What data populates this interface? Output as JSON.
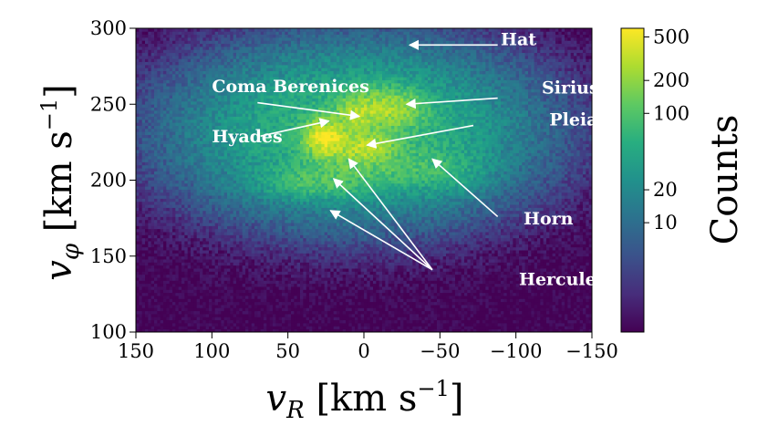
{
  "chart_data": {
    "type": "heatmap",
    "title": "",
    "xlabel": {
      "var": "v",
      "sub": "R",
      "unit": "[km s",
      "exp": "−1",
      "close": "]"
    },
    "ylabel": {
      "var": "v",
      "sub": "φ",
      "unit": "[km s",
      "exp": "−1",
      "close": "]"
    },
    "xlim": [
      150,
      -150
    ],
    "ylim": [
      100,
      300
    ],
    "x_ticks": [
      {
        "value": 150,
        "label": "150"
      },
      {
        "value": 100,
        "label": "100"
      },
      {
        "value": 50,
        "label": "50"
      },
      {
        "value": 0,
        "label": "0"
      },
      {
        "value": -50,
        "label": "−50"
      },
      {
        "value": -100,
        "label": "−100"
      },
      {
        "value": -150,
        "label": "−150"
      }
    ],
    "y_ticks": [
      {
        "value": 100,
        "label": "100"
      },
      {
        "value": 150,
        "label": "150"
      },
      {
        "value": 200,
        "label": "200"
      },
      {
        "value": 250,
        "label": "250"
      },
      {
        "value": 300,
        "label": "300"
      }
    ],
    "colorbar": {
      "label": "Counts",
      "scale": "log",
      "range": [
        1,
        600
      ],
      "colormap": "viridis",
      "ticks": [
        {
          "value": 10,
          "label": "10"
        },
        {
          "value": 20,
          "label": "20"
        },
        {
          "value": 100,
          "label": "100"
        },
        {
          "value": 200,
          "label": "200"
        },
        {
          "value": 500,
          "label": "500"
        }
      ]
    },
    "density_components": [
      {
        "vR": 5,
        "vphi": 232,
        "sR": 60,
        "sphi": 30,
        "amp": 75
      },
      {
        "vR": 25,
        "vphi": 228,
        "sR": 8,
        "sphi": 7,
        "amp": 480
      },
      {
        "vR": -12,
        "vphi": 247,
        "sR": 16,
        "sphi": 8,
        "amp": 220
      },
      {
        "vR": 5,
        "vphi": 243,
        "sR": 6,
        "sphi": 5,
        "amp": 160
      },
      {
        "vR": 0,
        "vphi": 222,
        "sR": 12,
        "sphi": 6,
        "amp": 260
      },
      {
        "vR": 30,
        "vphi": 198,
        "sR": 22,
        "sphi": 6,
        "amp": 60
      },
      {
        "vR": 5,
        "vphi": 208,
        "sR": 25,
        "sphi": 6,
        "amp": 50
      },
      {
        "vR": -45,
        "vphi": 208,
        "sR": 20,
        "sphi": 10,
        "amp": 40
      }
    ],
    "annotations": [
      {
        "text": "Hat",
        "label_anchor": [
          -90,
          289
        ],
        "arrow_from": [
          -88,
          289
        ],
        "arrow_to": [
          -30,
          289
        ]
      },
      {
        "text": "Coma Berenices",
        "label_anchor": [
          100,
          258
        ],
        "arrow_from": [
          70,
          251
        ],
        "arrow_to": [
          3,
          242
        ]
      },
      {
        "text": "Sirius",
        "label_anchor": [
          -117,
          257
        ],
        "arrow_from": [
          -88,
          254
        ],
        "arrow_to": [
          -28,
          250
        ]
      },
      {
        "text": "Hyades",
        "label_anchor": [
          100,
          225
        ],
        "arrow_from": [
          68,
          229
        ],
        "arrow_to": [
          23,
          239
        ]
      },
      {
        "text": "Pleiades",
        "label_anchor": [
          -122,
          236
        ],
        "arrow_from": [
          -72,
          236
        ],
        "arrow_to": [
          -2,
          223
        ]
      },
      {
        "text": "Horn",
        "label_anchor": [
          -105,
          171
        ],
        "arrow_from": [
          -88,
          176
        ],
        "arrow_to": [
          -45,
          214
        ]
      },
      {
        "text": "Hercules",
        "label_anchor": [
          -102,
          131
        ],
        "arrow_from": [
          -45,
          141
        ],
        "arrow_to": [
          20,
          201
        ]
      },
      {
        "text": "",
        "label_anchor": null,
        "arrow_from": [
          -45,
          141
        ],
        "arrow_to": [
          10,
          214
        ]
      },
      {
        "text": "",
        "label_anchor": null,
        "arrow_from": [
          -45,
          141
        ],
        "arrow_to": [
          22,
          180
        ]
      }
    ]
  }
}
